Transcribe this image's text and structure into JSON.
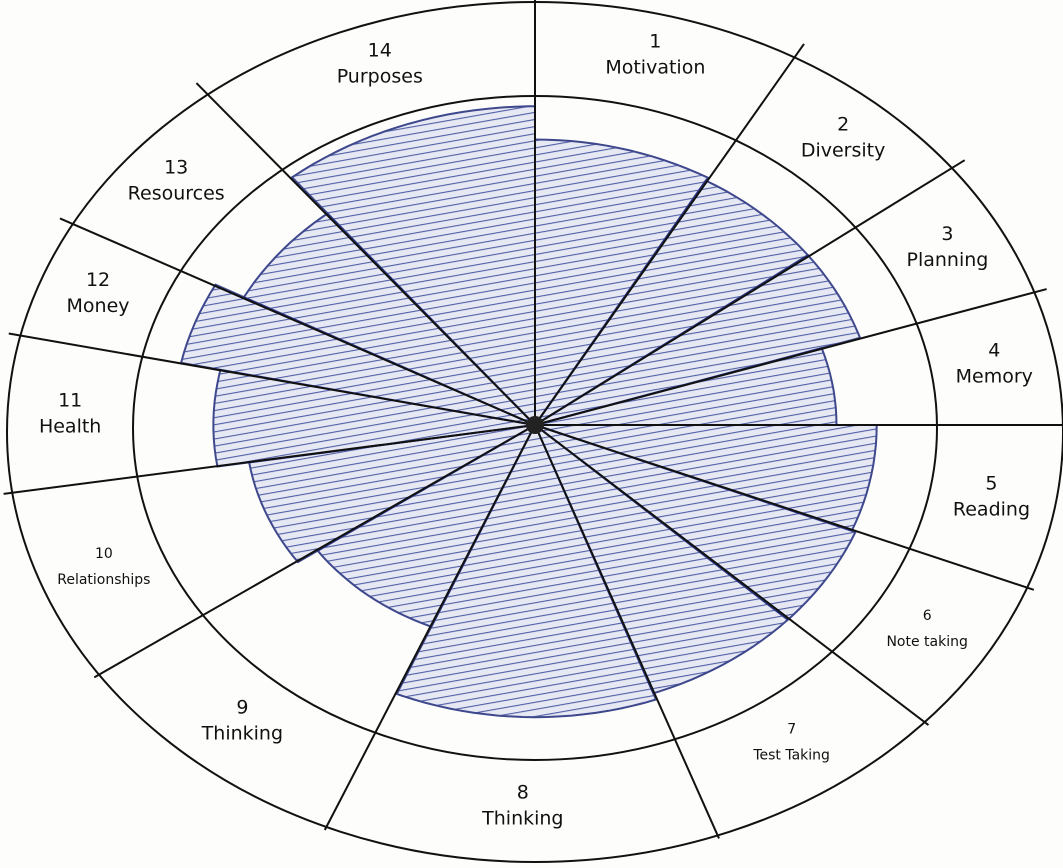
{
  "sections": [
    {
      "number": "1",
      "label": "Motivation"
    },
    {
      "number": "2",
      "label": "Diversity"
    },
    {
      "number": "3",
      "label": "Planning"
    },
    {
      "number": "4",
      "label": "Memory"
    },
    {
      "number": "5",
      "label": "Reading"
    },
    {
      "number": "6",
      "label": "Note taking"
    },
    {
      "number": "7",
      "label": "Test Taking"
    },
    {
      "number": "8",
      "label": "Thinking"
    },
    {
      "number": "9",
      "label": "Thinking"
    },
    {
      "number": "10",
      "label": "Relationships"
    },
    {
      "number": "11",
      "label": "Health"
    },
    {
      "number": "12",
      "label": "Money"
    },
    {
      "number": "13",
      "label": "Resources"
    },
    {
      "number": "14",
      "label": "Purposes"
    }
  ]
}
